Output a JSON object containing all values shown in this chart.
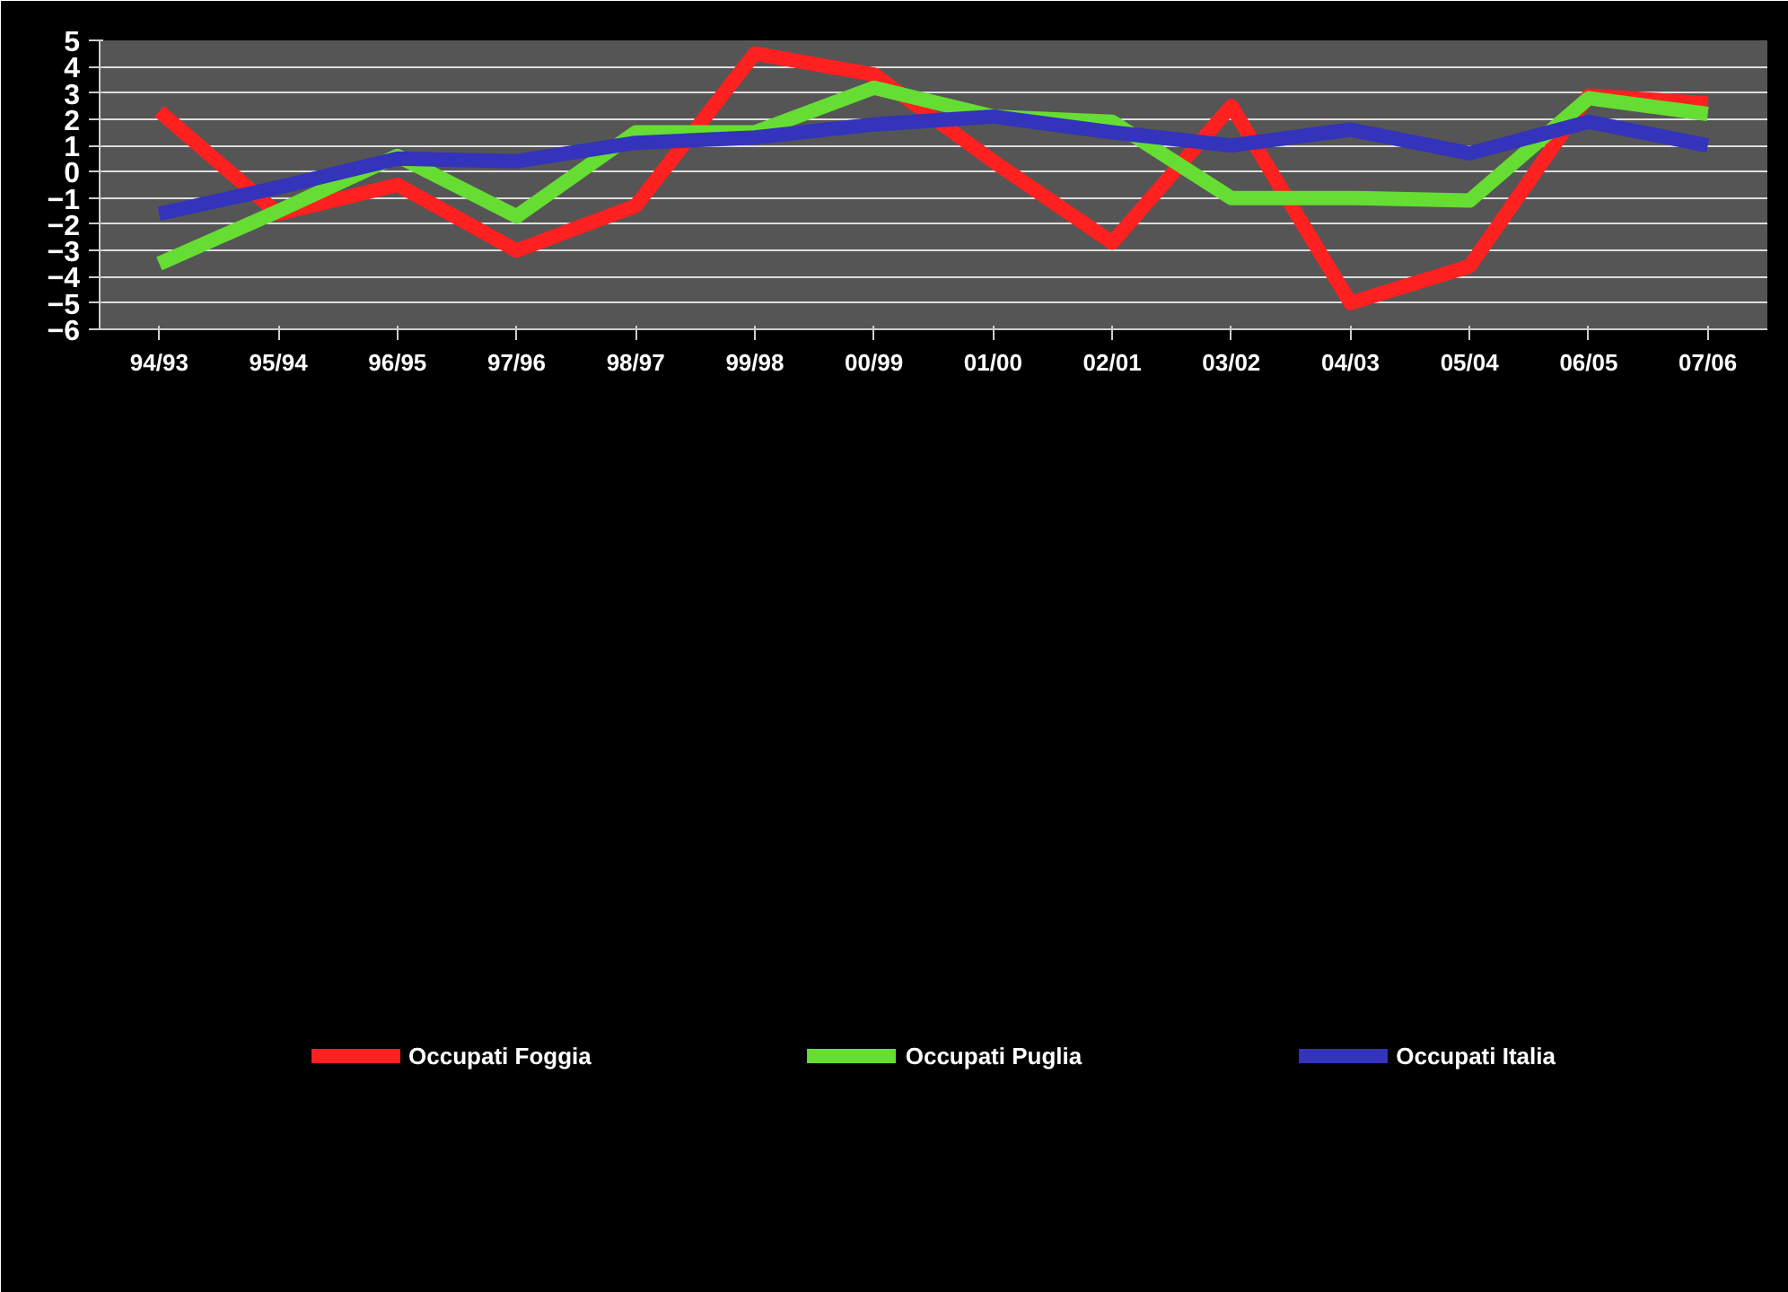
{
  "chart_data": {
    "type": "line",
    "categories": [
      "94/93",
      "95/94",
      "96/95",
      "97/96",
      "98/97",
      "99/98",
      "00/99",
      "01/00",
      "02/01",
      "03/02",
      "04/03",
      "05/04",
      "06/05",
      "07/06"
    ],
    "series": [
      {
        "name": "Occupati Foggia",
        "color": "#ff2020",
        "values": [
          2.3,
          -1.6,
          -0.5,
          -3.0,
          -1.3,
          4.5,
          3.7,
          0.4,
          -2.7,
          2.5,
          -5.0,
          -3.6,
          2.9,
          2.6
        ]
      },
      {
        "name": "Occupati Puglia",
        "color": "#66dd33",
        "values": [
          -3.5,
          -1.5,
          0.6,
          -1.7,
          1.5,
          1.5,
          3.2,
          2.1,
          1.9,
          -1.0,
          -1.0,
          -1.1,
          2.8,
          2.2
        ]
      },
      {
        "name": "Occupati Italia",
        "color": "#3333bb",
        "values": [
          -1.6,
          -0.6,
          0.5,
          0.4,
          1.1,
          1.3,
          1.8,
          2.1,
          1.5,
          1.0,
          1.6,
          0.7,
          1.9,
          1.0
        ]
      }
    ],
    "ylim": [
      -6,
      5
    ],
    "yticks": [
      -6,
      -5,
      -4,
      -3,
      -2,
      -1,
      0,
      1,
      2,
      3,
      4,
      5
    ],
    "grid": "y",
    "legend": "bottom",
    "marker": "none",
    "line_style": "solid"
  }
}
